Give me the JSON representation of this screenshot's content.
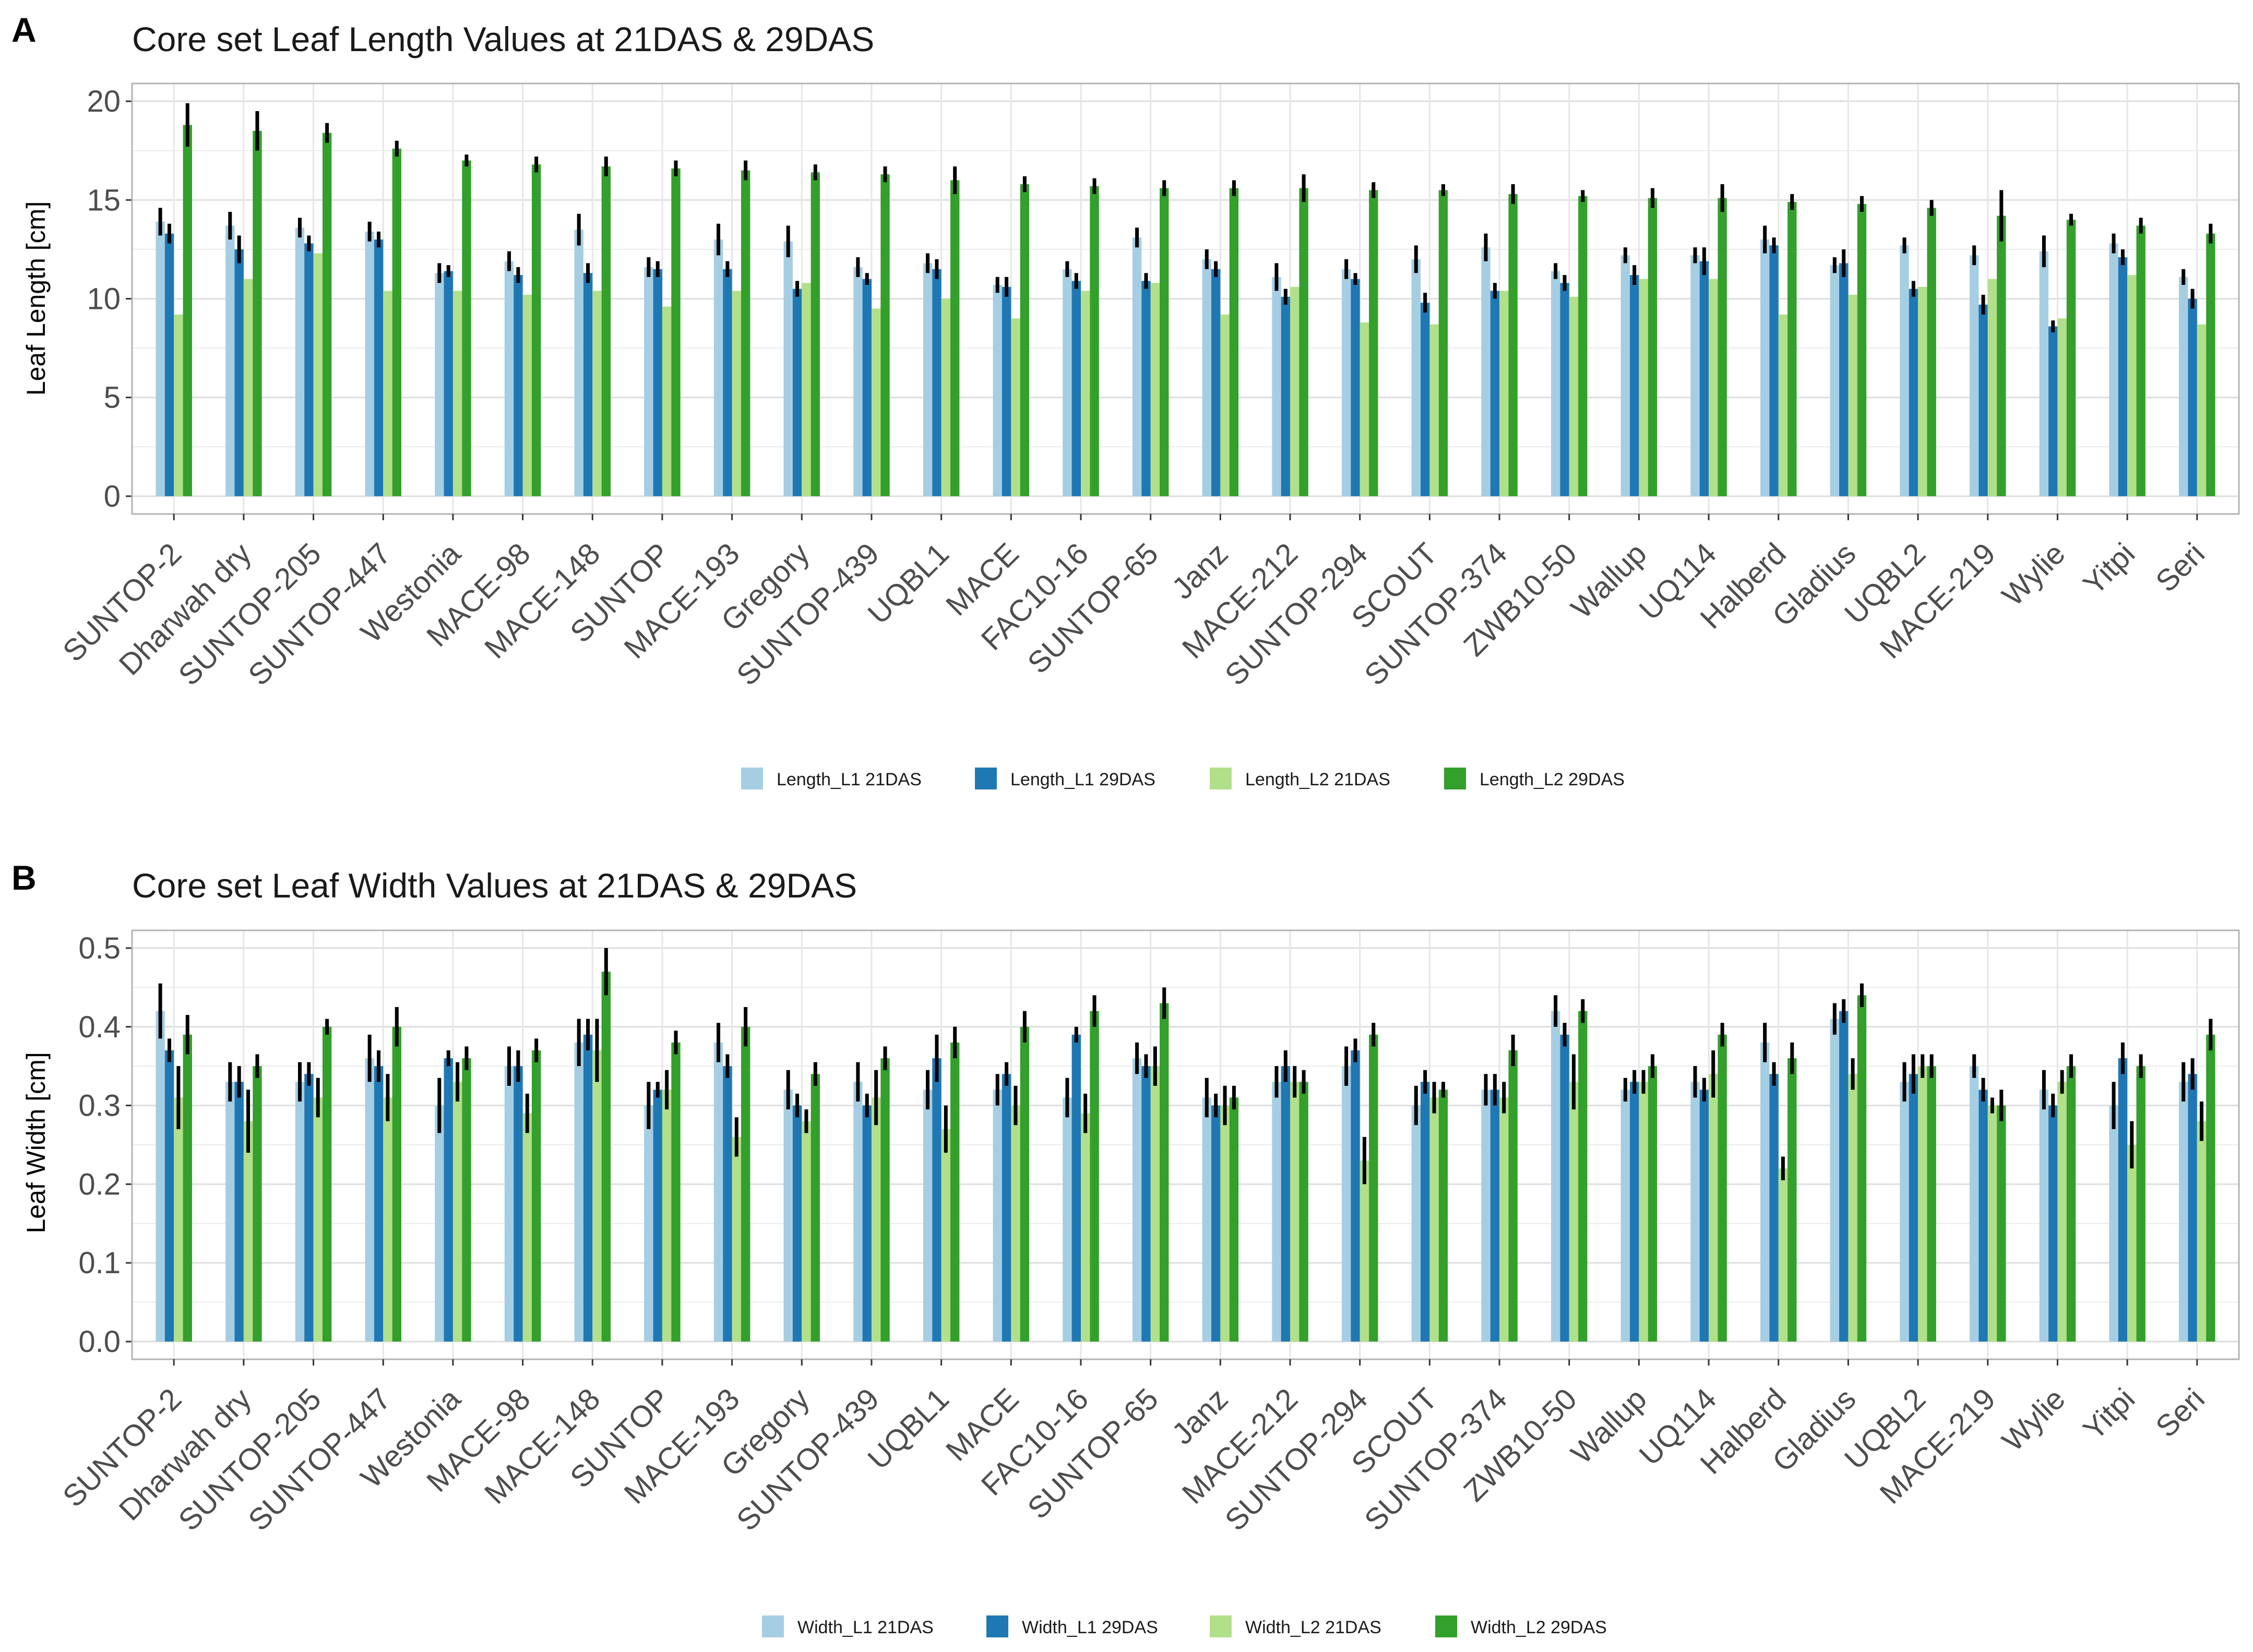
{
  "chart_data": [
    {
      "panel": "A",
      "type": "bar",
      "title": "Core set Leaf Length Values at 21DAS & 29DAS",
      "xlabel": "",
      "ylabel": "Leaf Length [cm]",
      "ylim": [
        0,
        20
      ],
      "yticks": [
        0,
        5,
        10,
        15,
        20
      ],
      "grid": true,
      "legend_position": "bottom",
      "categories": [
        "SUNTOP-2",
        "Dharwah dry",
        "SUNTOP-205",
        "SUNTOP-447",
        "Westonia",
        "MACE-98",
        "MACE-148",
        "SUNTOP",
        "MACE-193",
        "Gregory",
        "SUNTOP-439",
        "UQBL1",
        "MACE",
        "FAC10-16",
        "SUNTOP-65",
        "Janz",
        "MACE-212",
        "SUNTOP-294",
        "SCOUT",
        "SUNTOP-374",
        "ZWB10-50",
        "Wallup",
        "UQ114",
        "Halberd",
        "Gladius",
        "UQBL2",
        "MACE-219",
        "Wylie",
        "Yitpi",
        "Seri"
      ],
      "series": [
        {
          "name": "Length_L1 21DAS",
          "color": "#a6cee3",
          "values": [
            13.9,
            13.7,
            13.6,
            13.4,
            11.3,
            11.9,
            13.5,
            11.6,
            13.0,
            12.9,
            11.6,
            11.8,
            10.7,
            11.5,
            13.1,
            12.0,
            11.1,
            11.5,
            12.0,
            12.6,
            11.4,
            12.2,
            12.2,
            13.0,
            11.7,
            12.7,
            12.2,
            12.4,
            12.8,
            11.1
          ],
          "errors": [
            0.7,
            0.7,
            0.5,
            0.5,
            0.5,
            0.5,
            0.8,
            0.5,
            0.8,
            0.8,
            0.5,
            0.5,
            0.4,
            0.4,
            0.5,
            0.5,
            0.7,
            0.5,
            0.7,
            0.7,
            0.4,
            0.4,
            0.4,
            0.7,
            0.4,
            0.4,
            0.5,
            0.8,
            0.5,
            0.4
          ]
        },
        {
          "name": "Length_L1 29DAS",
          "color": "#1f78b4",
          "values": [
            13.3,
            12.5,
            12.8,
            13.0,
            11.4,
            11.2,
            11.3,
            11.5,
            11.5,
            10.5,
            11.0,
            11.5,
            10.6,
            10.9,
            10.9,
            11.5,
            10.1,
            11.0,
            9.8,
            10.4,
            10.8,
            11.2,
            11.9,
            12.7,
            11.8,
            10.5,
            9.7,
            8.6,
            12.1,
            10.0
          ],
          "errors": [
            0.5,
            0.7,
            0.4,
            0.4,
            0.3,
            0.4,
            0.5,
            0.4,
            0.4,
            0.4,
            0.3,
            0.5,
            0.5,
            0.4,
            0.4,
            0.4,
            0.4,
            0.3,
            0.5,
            0.4,
            0.4,
            0.5,
            0.7,
            0.4,
            0.7,
            0.4,
            0.5,
            0.3,
            0.4,
            0.5
          ]
        },
        {
          "name": "Length_L2 21DAS",
          "color": "#b2df8a",
          "values": [
            9.2,
            11.0,
            12.3,
            10.4,
            10.4,
            10.2,
            10.4,
            9.6,
            10.4,
            10.8,
            9.5,
            10.0,
            9.0,
            10.4,
            10.8,
            9.2,
            10.6,
            8.8,
            8.7,
            10.4,
            10.1,
            11.0,
            11.0,
            9.2,
            10.2,
            10.6,
            11.0,
            9.0,
            11.2,
            8.7
          ]
        },
        {
          "name": "Length_L2 29DAS",
          "color": "#33a02c",
          "values": [
            18.8,
            18.5,
            18.4,
            17.6,
            17.0,
            16.8,
            16.7,
            16.6,
            16.5,
            16.4,
            16.3,
            16.0,
            15.8,
            15.7,
            15.6,
            15.6,
            15.6,
            15.5,
            15.5,
            15.3,
            15.2,
            15.1,
            15.1,
            14.9,
            14.8,
            14.6,
            14.2,
            14.0,
            13.7,
            13.3
          ],
          "errors": [
            1.1,
            1.0,
            0.5,
            0.4,
            0.3,
            0.4,
            0.5,
            0.4,
            0.5,
            0.4,
            0.4,
            0.7,
            0.4,
            0.4,
            0.4,
            0.4,
            0.7,
            0.4,
            0.3,
            0.5,
            0.3,
            0.5,
            0.7,
            0.4,
            0.4,
            0.4,
            1.3,
            0.3,
            0.4,
            0.5
          ]
        }
      ]
    },
    {
      "panel": "B",
      "type": "bar",
      "title": "Core set Leaf Width Values at 21DAS & 29DAS",
      "xlabel": "",
      "ylabel": "Leaf Width [cm]",
      "ylim": [
        0,
        0.5
      ],
      "yticks": [
        0.0,
        0.1,
        0.2,
        0.3,
        0.4,
        0.5
      ],
      "grid": true,
      "legend_position": "bottom",
      "categories": [
        "SUNTOP-2",
        "Dharwah dry",
        "SUNTOP-205",
        "SUNTOP-447",
        "Westonia",
        "MACE-98",
        "MACE-148",
        "SUNTOP",
        "MACE-193",
        "Gregory",
        "SUNTOP-439",
        "UQBL1",
        "MACE",
        "FAC10-16",
        "SUNTOP-65",
        "Janz",
        "MACE-212",
        "SUNTOP-294",
        "SCOUT",
        "SUNTOP-374",
        "ZWB10-50",
        "Wallup",
        "UQ114",
        "Halberd",
        "Gladius",
        "UQBL2",
        "MACE-219",
        "Wylie",
        "Yitpi",
        "Seri"
      ],
      "series": [
        {
          "name": "Width_L1 21DAS",
          "color": "#a6cee3",
          "values": [
            0.42,
            0.33,
            0.33,
            0.36,
            0.3,
            0.35,
            0.38,
            0.3,
            0.38,
            0.32,
            0.33,
            0.32,
            0.32,
            0.31,
            0.36,
            0.31,
            0.33,
            0.35,
            0.3,
            0.32,
            0.42,
            0.32,
            0.33,
            0.38,
            0.41,
            0.33,
            0.35,
            0.32,
            0.3,
            0.33
          ],
          "errors": [
            0.035,
            0.025,
            0.025,
            0.03,
            0.035,
            0.025,
            0.03,
            0.03,
            0.025,
            0.025,
            0.025,
            0.025,
            0.02,
            0.025,
            0.02,
            0.025,
            0.02,
            0.025,
            0.025,
            0.02,
            0.02,
            0.015,
            0.02,
            0.025,
            0.02,
            0.025,
            0.015,
            0.025,
            0.03,
            0.025
          ]
        },
        {
          "name": "Width_L1 29DAS",
          "color": "#1f78b4",
          "values": [
            0.37,
            0.33,
            0.34,
            0.35,
            0.36,
            0.35,
            0.39,
            0.32,
            0.35,
            0.3,
            0.3,
            0.36,
            0.34,
            0.39,
            0.35,
            0.3,
            0.35,
            0.37,
            0.33,
            0.32,
            0.39,
            0.33,
            0.32,
            0.34,
            0.42,
            0.34,
            0.32,
            0.3,
            0.36,
            0.34
          ],
          "errors": [
            0.015,
            0.02,
            0.015,
            0.02,
            0.01,
            0.02,
            0.02,
            0.01,
            0.015,
            0.015,
            0.015,
            0.03,
            0.015,
            0.01,
            0.015,
            0.015,
            0.02,
            0.015,
            0.015,
            0.02,
            0.015,
            0.015,
            0.015,
            0.015,
            0.015,
            0.025,
            0.015,
            0.015,
            0.02,
            0.02
          ]
        },
        {
          "name": "Width_L2 21DAS",
          "color": "#b2df8a",
          "values": [
            0.31,
            0.28,
            0.31,
            0.31,
            0.33,
            0.29,
            0.37,
            0.32,
            0.26,
            0.28,
            0.31,
            0.27,
            0.3,
            0.29,
            0.35,
            0.3,
            0.33,
            0.23,
            0.31,
            0.31,
            0.33,
            0.33,
            0.34,
            0.22,
            0.34,
            0.35,
            0.3,
            0.33,
            0.25,
            0.28
          ],
          "errors": [
            0.04,
            0.04,
            0.025,
            0.03,
            0.025,
            0.025,
            0.04,
            0.025,
            0.025,
            0.015,
            0.035,
            0.03,
            0.025,
            0.025,
            0.025,
            0.025,
            0.02,
            0.03,
            0.02,
            0.02,
            0.035,
            0.015,
            0.03,
            0.015,
            0.02,
            0.015,
            0.01,
            0.015,
            0.03,
            0.025
          ]
        },
        {
          "name": "Width_L2 29DAS",
          "color": "#33a02c",
          "values": [
            0.39,
            0.35,
            0.4,
            0.4,
            0.36,
            0.37,
            0.47,
            0.38,
            0.4,
            0.34,
            0.36,
            0.38,
            0.4,
            0.42,
            0.43,
            0.31,
            0.33,
            0.39,
            0.32,
            0.37,
            0.42,
            0.35,
            0.39,
            0.36,
            0.44,
            0.35,
            0.3,
            0.35,
            0.35,
            0.39
          ],
          "errors": [
            0.025,
            0.015,
            0.01,
            0.025,
            0.015,
            0.015,
            0.03,
            0.015,
            0.025,
            0.015,
            0.015,
            0.02,
            0.02,
            0.02,
            0.02,
            0.015,
            0.015,
            0.015,
            0.01,
            0.02,
            0.015,
            0.015,
            0.015,
            0.02,
            0.015,
            0.015,
            0.02,
            0.015,
            0.015,
            0.02
          ]
        }
      ]
    }
  ]
}
